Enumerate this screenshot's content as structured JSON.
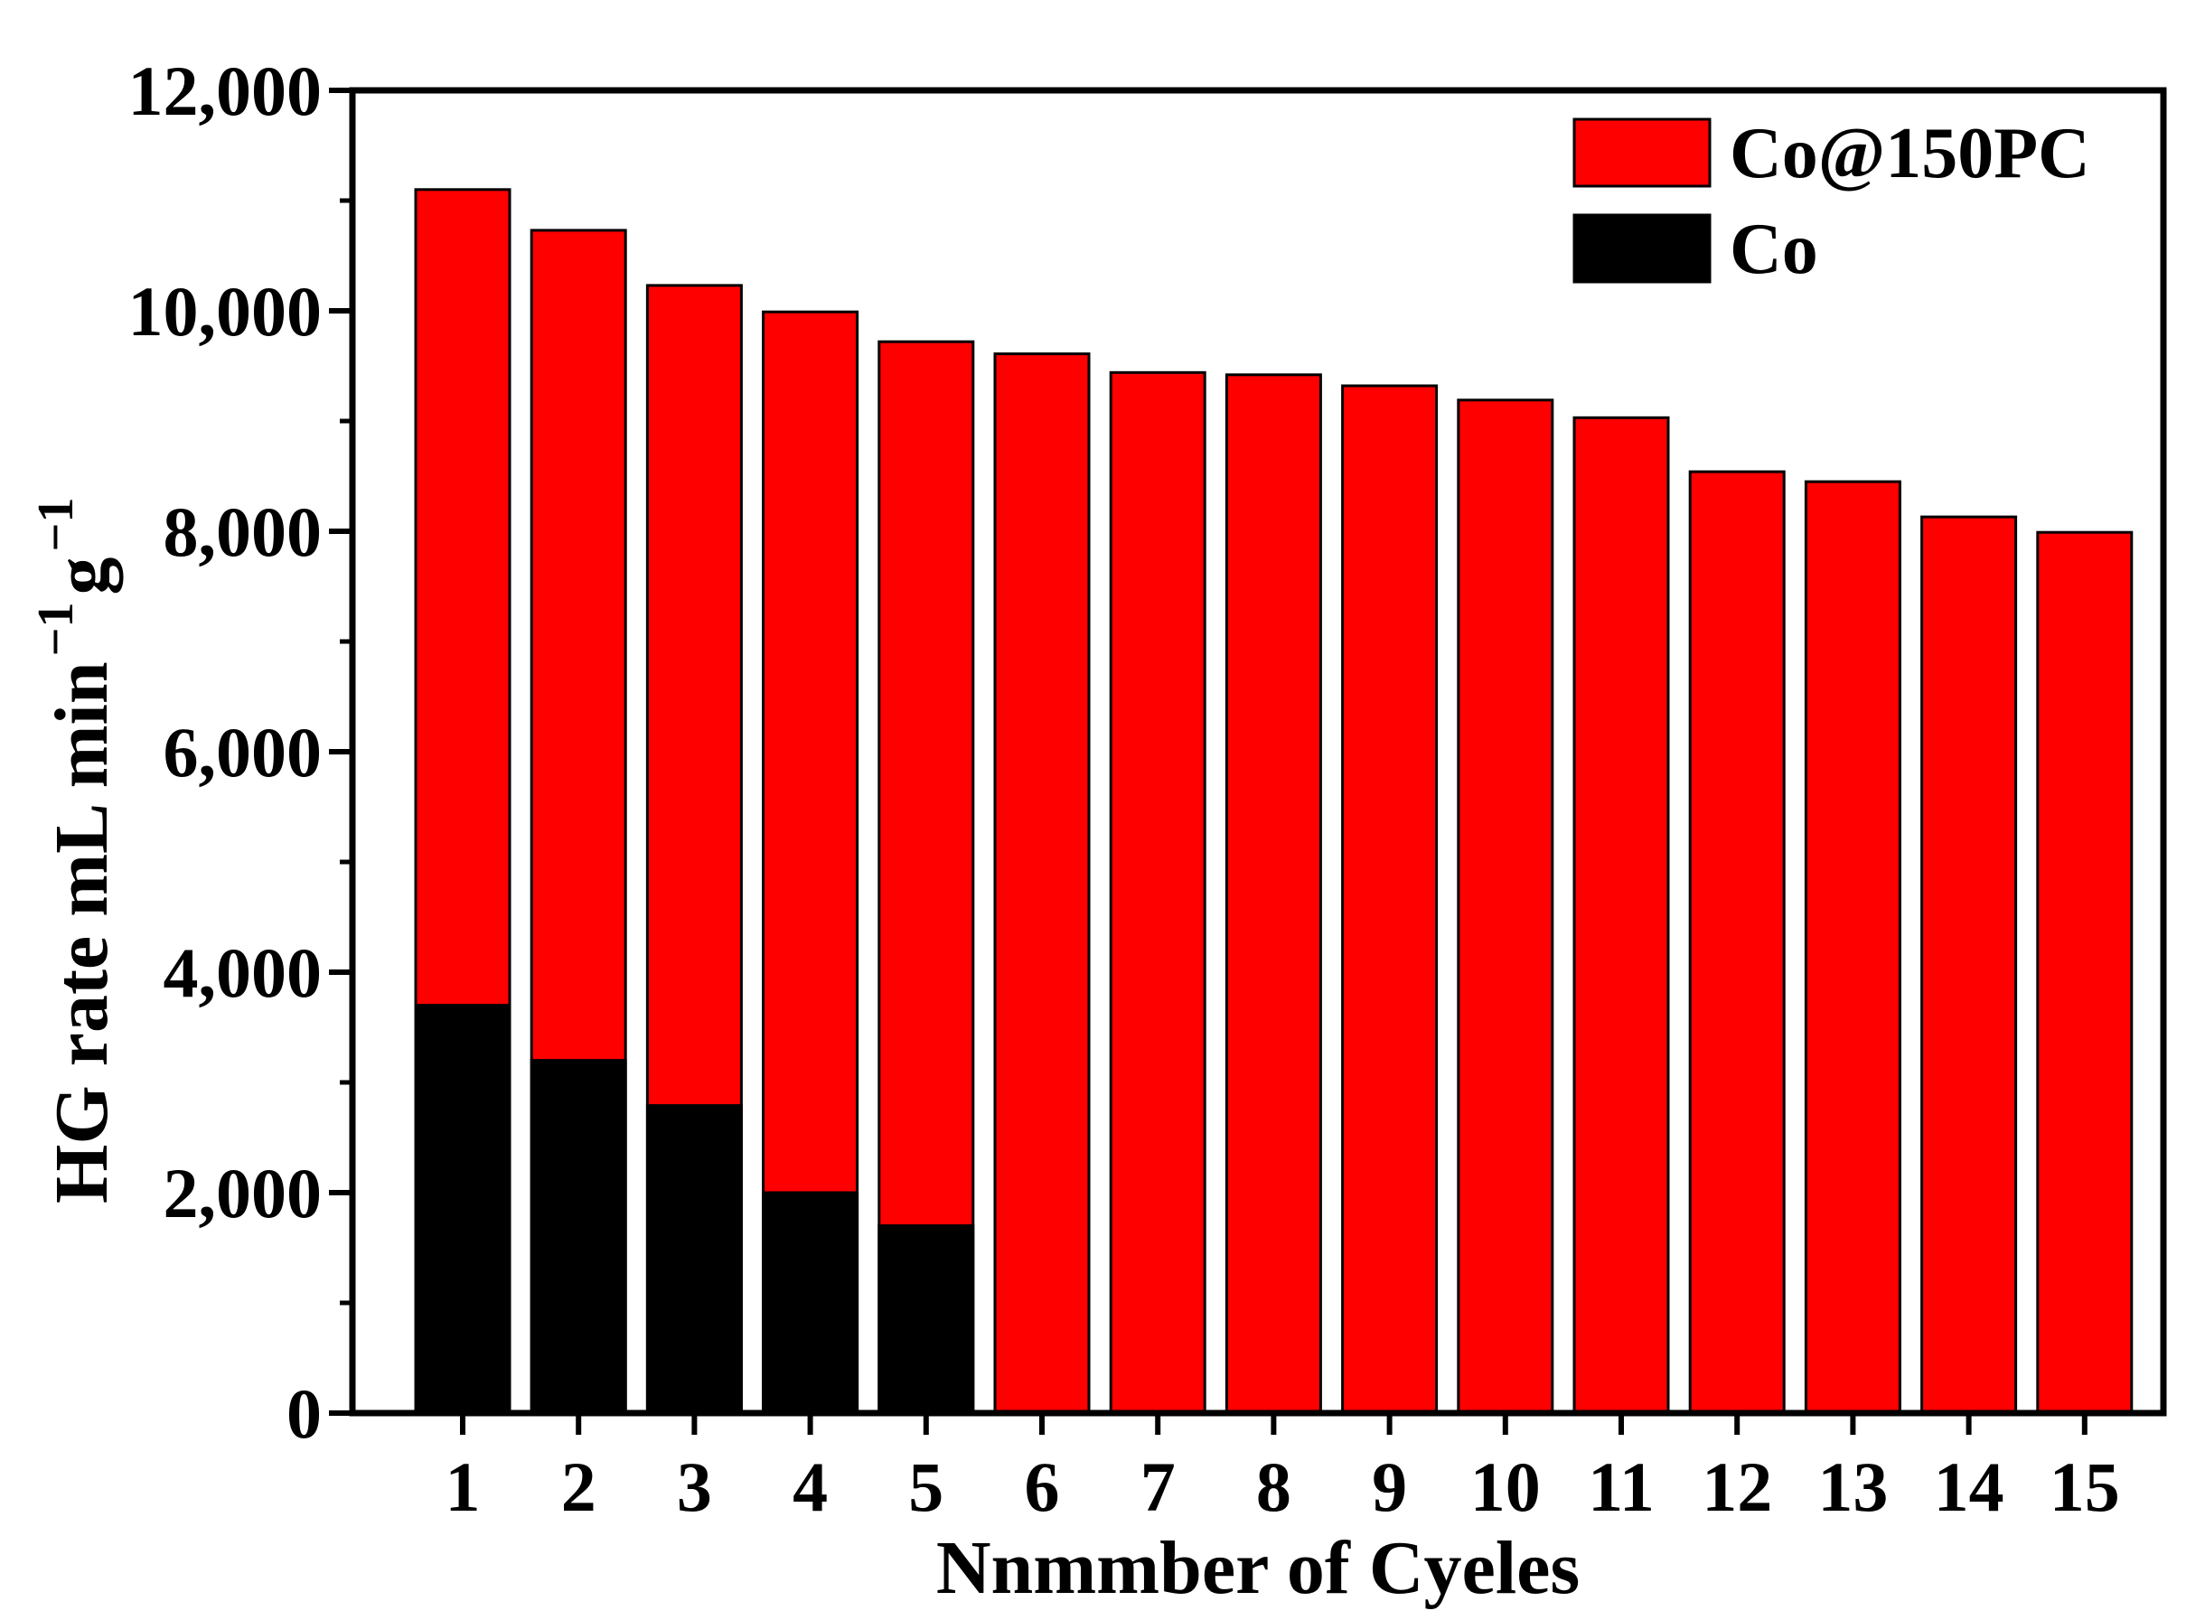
{
  "chart_data": {
    "type": "bar",
    "xlabel": "Nnmmber of Cyeles",
    "ylabel": {
      "main": "HG rate mL min",
      "unit_min_exp": "−1",
      "unit_g": "g",
      "unit_g_exp": "−1"
    },
    "ylim": [
      0,
      12000
    ],
    "yticks": [
      0,
      2000,
      4000,
      6000,
      8000,
      10000,
      12000
    ],
    "ytick_labels": [
      "0",
      "2,000",
      "4,000",
      "6,000",
      "8,000",
      "10,000",
      "12,000"
    ],
    "categories": [
      "1",
      "2",
      "3",
      "4",
      "5",
      "6",
      "7",
      "8",
      "9",
      "10",
      "11",
      "12",
      "13",
      "14",
      "15"
    ],
    "grid": false,
    "legend_position": "top-right",
    "overlay": true,
    "series": [
      {
        "name": "Co@150PC",
        "color": "#ff0000",
        "values": [
          11100,
          10730,
          10230,
          9990,
          9720,
          9610,
          9440,
          9420,
          9320,
          9190,
          9030,
          8540,
          8450,
          8130,
          7990
        ]
      },
      {
        "name": "Co",
        "color": "#000000",
        "values": [
          3700,
          3200,
          2790,
          2000,
          1700,
          null,
          null,
          null,
          null,
          null,
          null,
          null,
          null,
          null,
          null
        ]
      }
    ]
  }
}
